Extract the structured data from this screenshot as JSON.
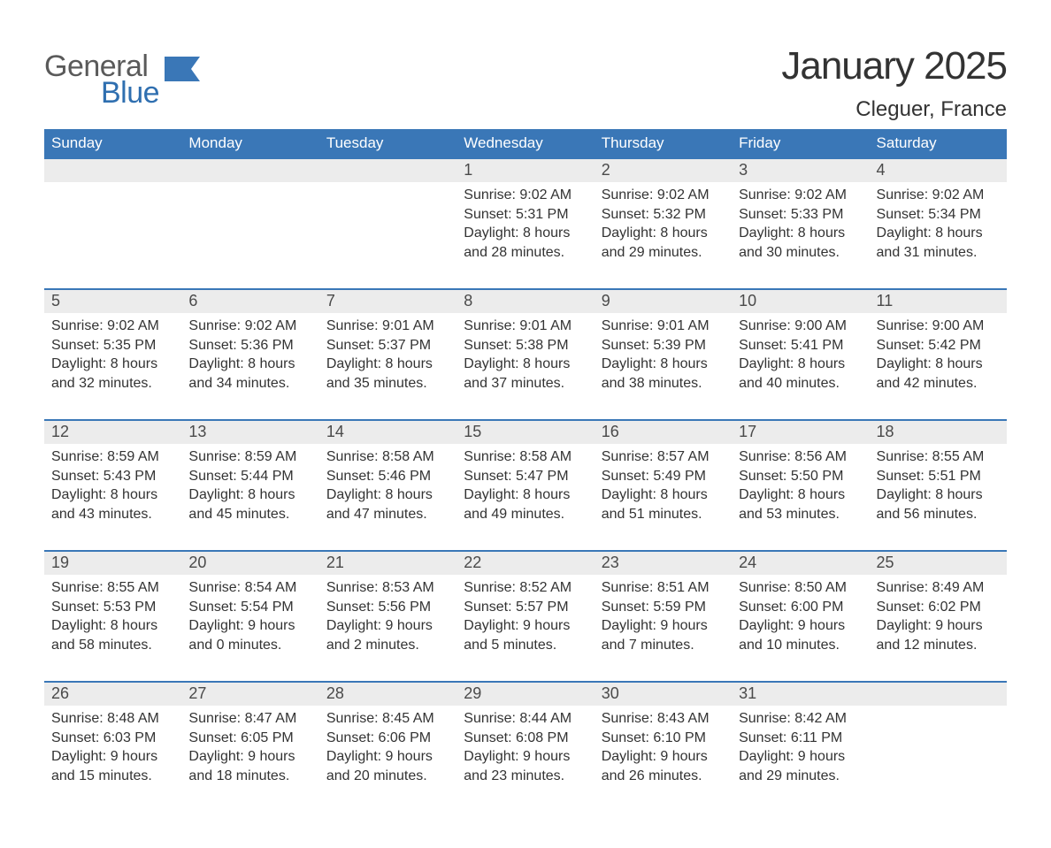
{
  "logo": {
    "text1": "General",
    "text2": "Blue",
    "color_gray": "#5a5a5a",
    "color_blue": "#2f6fb0"
  },
  "title": "January 2025",
  "location": "Cleguer, France",
  "colors": {
    "header_bg": "#3a77b7",
    "header_text": "#ffffff",
    "row_border": "#3a77b7",
    "daynum_bg": "#ececec",
    "body_text": "#333333",
    "page_bg": "#ffffff"
  },
  "day_headers": [
    "Sunday",
    "Monday",
    "Tuesday",
    "Wednesday",
    "Thursday",
    "Friday",
    "Saturday"
  ],
  "cell_font_size_pt": 12,
  "weeks": [
    [
      null,
      null,
      null,
      {
        "n": "1",
        "sunrise": "Sunrise: 9:02 AM",
        "sunset": "Sunset: 5:31 PM",
        "daylight": "Daylight: 8 hours and 28 minutes."
      },
      {
        "n": "2",
        "sunrise": "Sunrise: 9:02 AM",
        "sunset": "Sunset: 5:32 PM",
        "daylight": "Daylight: 8 hours and 29 minutes."
      },
      {
        "n": "3",
        "sunrise": "Sunrise: 9:02 AM",
        "sunset": "Sunset: 5:33 PM",
        "daylight": "Daylight: 8 hours and 30 minutes."
      },
      {
        "n": "4",
        "sunrise": "Sunrise: 9:02 AM",
        "sunset": "Sunset: 5:34 PM",
        "daylight": "Daylight: 8 hours and 31 minutes."
      }
    ],
    [
      {
        "n": "5",
        "sunrise": "Sunrise: 9:02 AM",
        "sunset": "Sunset: 5:35 PM",
        "daylight": "Daylight: 8 hours and 32 minutes."
      },
      {
        "n": "6",
        "sunrise": "Sunrise: 9:02 AM",
        "sunset": "Sunset: 5:36 PM",
        "daylight": "Daylight: 8 hours and 34 minutes."
      },
      {
        "n": "7",
        "sunrise": "Sunrise: 9:01 AM",
        "sunset": "Sunset: 5:37 PM",
        "daylight": "Daylight: 8 hours and 35 minutes."
      },
      {
        "n": "8",
        "sunrise": "Sunrise: 9:01 AM",
        "sunset": "Sunset: 5:38 PM",
        "daylight": "Daylight: 8 hours and 37 minutes."
      },
      {
        "n": "9",
        "sunrise": "Sunrise: 9:01 AM",
        "sunset": "Sunset: 5:39 PM",
        "daylight": "Daylight: 8 hours and 38 minutes."
      },
      {
        "n": "10",
        "sunrise": "Sunrise: 9:00 AM",
        "sunset": "Sunset: 5:41 PM",
        "daylight": "Daylight: 8 hours and 40 minutes."
      },
      {
        "n": "11",
        "sunrise": "Sunrise: 9:00 AM",
        "sunset": "Sunset: 5:42 PM",
        "daylight": "Daylight: 8 hours and 42 minutes."
      }
    ],
    [
      {
        "n": "12",
        "sunrise": "Sunrise: 8:59 AM",
        "sunset": "Sunset: 5:43 PM",
        "daylight": "Daylight: 8 hours and 43 minutes."
      },
      {
        "n": "13",
        "sunrise": "Sunrise: 8:59 AM",
        "sunset": "Sunset: 5:44 PM",
        "daylight": "Daylight: 8 hours and 45 minutes."
      },
      {
        "n": "14",
        "sunrise": "Sunrise: 8:58 AM",
        "sunset": "Sunset: 5:46 PM",
        "daylight": "Daylight: 8 hours and 47 minutes."
      },
      {
        "n": "15",
        "sunrise": "Sunrise: 8:58 AM",
        "sunset": "Sunset: 5:47 PM",
        "daylight": "Daylight: 8 hours and 49 minutes."
      },
      {
        "n": "16",
        "sunrise": "Sunrise: 8:57 AM",
        "sunset": "Sunset: 5:49 PM",
        "daylight": "Daylight: 8 hours and 51 minutes."
      },
      {
        "n": "17",
        "sunrise": "Sunrise: 8:56 AM",
        "sunset": "Sunset: 5:50 PM",
        "daylight": "Daylight: 8 hours and 53 minutes."
      },
      {
        "n": "18",
        "sunrise": "Sunrise: 8:55 AM",
        "sunset": "Sunset: 5:51 PM",
        "daylight": "Daylight: 8 hours and 56 minutes."
      }
    ],
    [
      {
        "n": "19",
        "sunrise": "Sunrise: 8:55 AM",
        "sunset": "Sunset: 5:53 PM",
        "daylight": "Daylight: 8 hours and 58 minutes."
      },
      {
        "n": "20",
        "sunrise": "Sunrise: 8:54 AM",
        "sunset": "Sunset: 5:54 PM",
        "daylight": "Daylight: 9 hours and 0 minutes."
      },
      {
        "n": "21",
        "sunrise": "Sunrise: 8:53 AM",
        "sunset": "Sunset: 5:56 PM",
        "daylight": "Daylight: 9 hours and 2 minutes."
      },
      {
        "n": "22",
        "sunrise": "Sunrise: 8:52 AM",
        "sunset": "Sunset: 5:57 PM",
        "daylight": "Daylight: 9 hours and 5 minutes."
      },
      {
        "n": "23",
        "sunrise": "Sunrise: 8:51 AM",
        "sunset": "Sunset: 5:59 PM",
        "daylight": "Daylight: 9 hours and 7 minutes."
      },
      {
        "n": "24",
        "sunrise": "Sunrise: 8:50 AM",
        "sunset": "Sunset: 6:00 PM",
        "daylight": "Daylight: 9 hours and 10 minutes."
      },
      {
        "n": "25",
        "sunrise": "Sunrise: 8:49 AM",
        "sunset": "Sunset: 6:02 PM",
        "daylight": "Daylight: 9 hours and 12 minutes."
      }
    ],
    [
      {
        "n": "26",
        "sunrise": "Sunrise: 8:48 AM",
        "sunset": "Sunset: 6:03 PM",
        "daylight": "Daylight: 9 hours and 15 minutes."
      },
      {
        "n": "27",
        "sunrise": "Sunrise: 8:47 AM",
        "sunset": "Sunset: 6:05 PM",
        "daylight": "Daylight: 9 hours and 18 minutes."
      },
      {
        "n": "28",
        "sunrise": "Sunrise: 8:45 AM",
        "sunset": "Sunset: 6:06 PM",
        "daylight": "Daylight: 9 hours and 20 minutes."
      },
      {
        "n": "29",
        "sunrise": "Sunrise: 8:44 AM",
        "sunset": "Sunset: 6:08 PM",
        "daylight": "Daylight: 9 hours and 23 minutes."
      },
      {
        "n": "30",
        "sunrise": "Sunrise: 8:43 AM",
        "sunset": "Sunset: 6:10 PM",
        "daylight": "Daylight: 9 hours and 26 minutes."
      },
      {
        "n": "31",
        "sunrise": "Sunrise: 8:42 AM",
        "sunset": "Sunset: 6:11 PM",
        "daylight": "Daylight: 9 hours and 29 minutes."
      },
      null
    ]
  ]
}
